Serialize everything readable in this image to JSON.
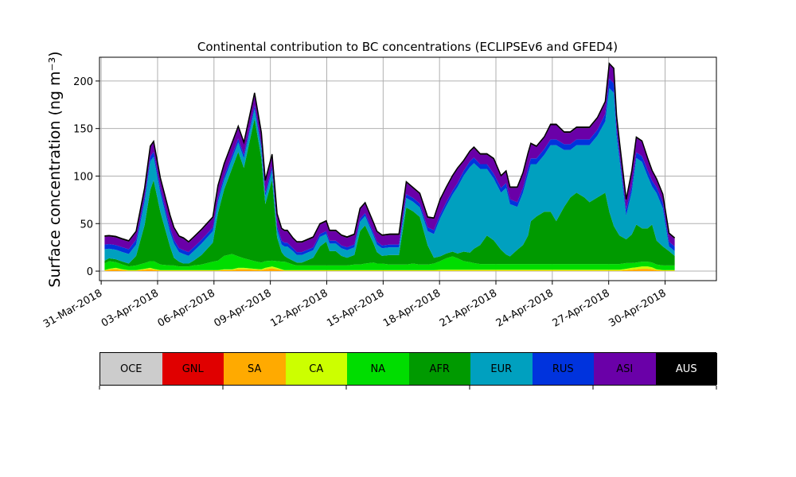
{
  "chart_data": {
    "type": "area",
    "stacked": true,
    "title": "Continental contribution to BC concentrations (ECLIPSEv6 and GFED4)",
    "xlabel": "",
    "ylabel": "Surface concentration (ng m⁻³)",
    "ylim": [
      -10,
      225
    ],
    "yticks": [
      0,
      50,
      100,
      150,
      200
    ],
    "xlim": [
      -0.03,
      10.91
    ],
    "xtick_labels": [
      "31-Mar-2018",
      "03-Apr-2018",
      "06-Apr-2018",
      "09-Apr-2018",
      "12-Apr-2018",
      "15-Apr-2018",
      "18-Apr-2018",
      "21-Apr-2018",
      "24-Apr-2018",
      "27-Apr-2018",
      "30-Apr-2018"
    ],
    "grid": true,
    "legend": "colorbar-bottom",
    "x": [
      0.06,
      0.14,
      0.26,
      0.38,
      0.49,
      0.62,
      0.77,
      0.87,
      0.93,
      1.05,
      1.22,
      1.29,
      1.38,
      1.46,
      1.55,
      1.64,
      1.78,
      1.98,
      2.07,
      2.18,
      2.32,
      2.43,
      2.53,
      2.72,
      2.84,
      2.91,
      3.03,
      3.12,
      3.2,
      3.25,
      3.3,
      3.4,
      3.47,
      3.56,
      3.64,
      3.76,
      3.88,
      3.99,
      4.05,
      4.16,
      4.26,
      4.36,
      4.49,
      4.59,
      4.68,
      4.83,
      4.89,
      4.98,
      5.12,
      5.28,
      5.41,
      5.53,
      5.65,
      5.79,
      5.9,
      6.01,
      6.12,
      6.23,
      6.32,
      6.43,
      6.54,
      6.61,
      6.72,
      6.84,
      6.96,
      7.09,
      7.18,
      7.25,
      7.38,
      7.48,
      7.57,
      7.62,
      7.72,
      7.86,
      7.97,
      8.07,
      8.21,
      8.32,
      8.43,
      8.57,
      8.66,
      8.8,
      8.94,
      9.01,
      9.09,
      9.14,
      9.19,
      9.31,
      9.41,
      9.49,
      9.59,
      9.69,
      9.77,
      9.85,
      9.96,
      10.07,
      10.17
    ],
    "series": [
      {
        "name": "OCE",
        "color": "#cccccc",
        "values": [
          0.0,
          0.0,
          0.0,
          0.0,
          0.0,
          0.0,
          0.0,
          0.0,
          0.0,
          0.0,
          0.0,
          0.0,
          0.0,
          0.0,
          0.0,
          0.0,
          0.0,
          0.0,
          0.0,
          0.0,
          0.0,
          0.0,
          0.0,
          0.0,
          0.0,
          0.0,
          0.0,
          0.0,
          0.0,
          0.0,
          0.0,
          0.0,
          0.0,
          0.0,
          0.0,
          0.0,
          0.0,
          0.0,
          0.0,
          0.0,
          0.0,
          0.0,
          0.0,
          0.0,
          0.0,
          0.0,
          0.0,
          0.0,
          0.0,
          0.0,
          0.0,
          0.0,
          0.0,
          0.0,
          0.0,
          0.0,
          0.0,
          0.0,
          0.0,
          0.0,
          0.0,
          0.0,
          0.0,
          0.0,
          0.0,
          0.0,
          0.0,
          0.0,
          0.0,
          0.0,
          0.0,
          0.0,
          0.0,
          0.0,
          0.0,
          0.0,
          0.0,
          0.0,
          0.0,
          0.0,
          0.0,
          0.0,
          0.0,
          0.0,
          0.0,
          0.0,
          0.0,
          0.0,
          0.0,
          0.0,
          0.0,
          0.0,
          0.0,
          0.0,
          0.0,
          0.0,
          0.0
        ]
      },
      {
        "name": "GNL",
        "color": "#e00000",
        "values": [
          0.0,
          0.0,
          0.0,
          0.0,
          0.0,
          0.0,
          0.0,
          0.0,
          0.0,
          0.0,
          0.0,
          0.0,
          0.0,
          0.0,
          0.0,
          0.0,
          0.0,
          0.0,
          0.0,
          0.0,
          0.0,
          0.0,
          0.0,
          0.0,
          0.0,
          0.0,
          0.0,
          0.0,
          0.0,
          0.0,
          0.0,
          0.0,
          0.0,
          0.0,
          0.0,
          0.0,
          0.0,
          0.0,
          0.0,
          0.0,
          0.0,
          0.0,
          0.0,
          0.0,
          0.0,
          0.0,
          0.0,
          0.0,
          0.0,
          0.0,
          0.0,
          0.0,
          0.0,
          0.0,
          0.0,
          0.0,
          0.0,
          0.0,
          0.0,
          0.0,
          0.0,
          0.0,
          0.0,
          0.0,
          0.0,
          0.0,
          0.0,
          0.0,
          0.0,
          0.0,
          0.0,
          0.0,
          0.0,
          0.0,
          0.0,
          0.0,
          0.0,
          0.0,
          0.0,
          0.0,
          0.0,
          0.0,
          0.0,
          0.0,
          0.0,
          0.0,
          0.0,
          0.0,
          0.0,
          0.0,
          0.0,
          0.0,
          0.0,
          0.0,
          0.0,
          0.0,
          0.0
        ]
      },
      {
        "name": "SA",
        "color": "#ffaa00",
        "values": [
          0.5,
          1.5,
          2,
          1,
          0.5,
          0.5,
          1.5,
          2,
          1.5,
          0.5,
          0.5,
          0.5,
          0.5,
          0.5,
          0.5,
          0.5,
          0.5,
          0.5,
          0.5,
          1,
          1,
          2,
          2,
          1.5,
          1,
          2,
          3,
          2,
          1,
          0.5,
          0.5,
          0.5,
          0.5,
          0.5,
          0.5,
          0.5,
          0.5,
          0.5,
          0.5,
          0.5,
          0.5,
          0.5,
          0.5,
          0.5,
          0.5,
          0.5,
          0.5,
          0.5,
          0.5,
          0.5,
          0.5,
          0.5,
          0.5,
          0.5,
          0.5,
          0.5,
          0.5,
          0.5,
          0.5,
          0.5,
          0.5,
          0.5,
          0.5,
          0.5,
          0.5,
          0.5,
          0.5,
          0.5,
          0.5,
          0.5,
          0.5,
          0.5,
          0.5,
          0.5,
          0.5,
          0.5,
          0.5,
          0.5,
          0.5,
          0.5,
          0.5,
          0.5,
          0.5,
          0.5,
          0.5,
          0.5,
          0.5,
          1,
          1.5,
          2,
          2.5,
          2.5,
          2,
          1,
          0.5,
          0.5,
          0.5
        ]
      },
      {
        "name": "CA",
        "color": "#ccff00",
        "values": [
          0.5,
          1,
          1.5,
          1,
          0.5,
          0.5,
          1,
          1.5,
          1,
          0.5,
          0.5,
          0.5,
          0.5,
          0.5,
          0.5,
          0.5,
          0.5,
          0.5,
          0.5,
          1,
          1,
          1.5,
          1.5,
          1,
          1,
          1.5,
          2,
          1.5,
          1,
          0.5,
          0.5,
          0.5,
          0.5,
          0.5,
          0.5,
          0.5,
          0.5,
          0.5,
          0.5,
          0.5,
          0.5,
          0.5,
          0.5,
          0.5,
          0.5,
          0.5,
          0.5,
          0.5,
          0.5,
          0.5,
          0.5,
          0.5,
          0.5,
          0.5,
          0.5,
          1,
          1,
          1,
          1,
          1,
          1,
          1,
          1,
          1,
          1,
          1,
          1,
          1,
          1,
          1,
          1,
          1,
          1,
          1,
          1,
          1,
          1,
          1,
          1,
          1,
          1,
          1,
          1,
          1,
          1,
          1,
          1,
          1.5,
          2,
          2,
          2.5,
          2.5,
          2,
          1,
          0.5,
          0.5,
          0.5
        ]
      },
      {
        "name": "NA",
        "color": "#00dd00",
        "values": [
          7,
          8,
          6,
          5,
          4,
          5,
          6,
          7,
          8,
          6,
          5,
          5,
          4,
          4,
          4,
          5,
          6,
          9,
          10,
          14,
          16,
          12,
          10,
          8,
          7,
          7,
          6,
          7,
          8,
          9,
          8,
          6,
          5,
          5,
          5,
          5,
          5,
          5,
          5,
          5,
          5,
          5,
          6,
          6,
          7,
          8,
          7,
          7,
          6,
          6,
          6,
          7,
          6,
          6,
          7,
          9,
          12,
          14,
          12,
          9,
          8,
          7,
          6,
          6,
          6,
          6,
          6,
          6,
          6,
          6,
          6,
          6,
          6,
          6,
          6,
          6,
          6,
          6,
          6,
          6,
          6,
          6,
          6,
          6,
          6,
          6,
          6,
          6,
          5,
          5,
          5,
          5,
          5,
          5,
          5,
          5,
          5
        ]
      },
      {
        "name": "AFR",
        "color": "#009a00",
        "values": [
          3,
          3,
          3,
          3,
          3,
          10,
          40,
          75,
          85,
          55,
          20,
          8,
          5,
          3,
          3,
          5,
          10,
          20,
          50,
          70,
          90,
          110,
          95,
          150,
          110,
          60,
          85,
          25,
          10,
          6,
          5,
          4,
          3,
          3,
          5,
          8,
          20,
          25,
          15,
          15,
          10,
          8,
          10,
          35,
          40,
          20,
          12,
          8,
          10,
          10,
          60,
          55,
          50,
          20,
          6,
          5,
          5,
          5,
          5,
          10,
          10,
          15,
          20,
          30,
          25,
          15,
          10,
          8,
          15,
          20,
          30,
          45,
          50,
          55,
          55,
          45,
          60,
          70,
          75,
          70,
          65,
          70,
          75,
          55,
          40,
          35,
          30,
          25,
          30,
          40,
          35,
          35,
          40,
          25,
          20,
          15,
          10
        ]
      },
      {
        "name": "EUR",
        "color": "#00a0bf",
        "values": [
          12,
          10,
          10,
          10,
          10,
          12,
          25,
          30,
          25,
          20,
          15,
          15,
          10,
          10,
          8,
          10,
          12,
          12,
          12,
          10,
          10,
          10,
          10,
          10,
          10,
          8,
          10,
          8,
          8,
          10,
          12,
          10,
          8,
          8,
          8,
          8,
          10,
          8,
          8,
          8,
          8,
          8,
          8,
          10,
          10,
          8,
          8,
          8,
          8,
          8,
          10,
          10,
          10,
          15,
          25,
          40,
          50,
          60,
          70,
          80,
          90,
          90,
          80,
          70,
          65,
          60,
          70,
          55,
          45,
          55,
          65,
          60,
          55,
          60,
          70,
          80,
          60,
          50,
          50,
          55,
          60,
          65,
          75,
          130,
          140,
          100,
          80,
          25,
          45,
          70,
          70,
          55,
          40,
          50,
          40,
          5,
          5
        ]
      },
      {
        "name": "RUS",
        "color": "#0033dd",
        "values": [
          5,
          5,
          5,
          5,
          5,
          5,
          5,
          5,
          5,
          5,
          5,
          4,
          4,
          4,
          4,
          4,
          4,
          4,
          4,
          4,
          4,
          4,
          4,
          4,
          4,
          4,
          4,
          4,
          4,
          4,
          4,
          3,
          3,
          3,
          3,
          3,
          3,
          3,
          3,
          3,
          3,
          3,
          3,
          3,
          3,
          3,
          3,
          3,
          3,
          3,
          4,
          4,
          4,
          4,
          4,
          4,
          4,
          4,
          4,
          5,
          6,
          6,
          5,
          5,
          5,
          5,
          5,
          5,
          5,
          5,
          6,
          6,
          6,
          6,
          6,
          6,
          6,
          6,
          6,
          6,
          6,
          6,
          8,
          10,
          10,
          8,
          6,
          6,
          6,
          6,
          6,
          6,
          6,
          6,
          6,
          5,
          5
        ]
      },
      {
        "name": "ASI",
        "color": "#6a00a8",
        "values": [
          8,
          8,
          8,
          8,
          8,
          8,
          8,
          10,
          10,
          10,
          12,
          12,
          12,
          12,
          10,
          10,
          10,
          10,
          12,
          12,
          12,
          12,
          12,
          12,
          12,
          12,
          12,
          12,
          12,
          12,
          12,
          10,
          10,
          10,
          10,
          10,
          10,
          10,
          10,
          10,
          10,
          10,
          10,
          10,
          10,
          10,
          10,
          10,
          10,
          10,
          12,
          10,
          10,
          10,
          12,
          15,
          15,
          15,
          15,
          10,
          10,
          10,
          10,
          10,
          15,
          12,
          12,
          12,
          15,
          15,
          15,
          15,
          12,
          12,
          15,
          15,
          12,
          12,
          12,
          12,
          12,
          12,
          12,
          15,
          15,
          12,
          12,
          10,
          15,
          15,
          15,
          12,
          10,
          8,
          8,
          8,
          8
        ]
      },
      {
        "name": "AUS",
        "color": "#000000",
        "values": [
          1,
          1,
          1,
          1,
          1,
          1,
          1,
          1,
          1,
          1,
          1,
          1,
          1,
          1,
          1,
          1,
          1,
          1,
          1,
          1,
          1,
          1,
          1,
          1,
          1,
          1,
          1,
          1,
          1,
          1,
          1,
          1,
          1,
          1,
          1,
          1,
          1,
          1,
          1,
          1,
          1,
          1,
          1,
          1,
          1,
          1,
          1,
          1,
          1,
          1,
          1,
          1,
          1,
          1,
          1,
          1,
          1,
          1,
          1,
          1,
          1,
          1,
          1,
          1,
          1,
          1,
          1,
          1,
          1,
          1,
          1,
          1,
          1,
          1,
          1,
          1,
          1,
          1,
          1,
          1,
          1,
          1,
          1,
          1,
          1,
          1,
          1,
          1,
          1,
          1,
          1,
          1,
          1,
          1,
          1,
          1,
          1
        ]
      }
    ]
  }
}
